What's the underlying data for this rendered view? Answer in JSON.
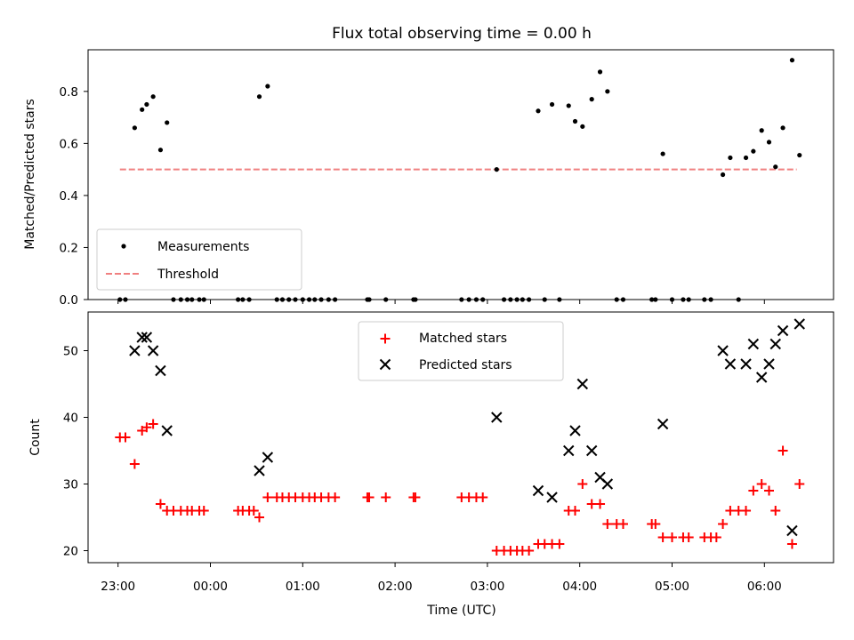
{
  "chart_data": {
    "title": "Flux total observing time = 0.00 h",
    "x_tick_labels": [
      "23:00",
      "00:00",
      "01:00",
      "02:00",
      "03:00",
      "04:00",
      "05:00",
      "06:00"
    ],
    "xlabel": "Time (UTC)",
    "top": {
      "type": "scatter",
      "ylabel": "Matched/Predicted stars",
      "ylim": [
        0,
        0.96
      ],
      "y_ticks": [
        "0.0",
        "0.2",
        "0.4",
        "0.6",
        "0.8"
      ],
      "legend": {
        "position": "lower-left",
        "entries": [
          "Measurements",
          "Threshold"
        ]
      },
      "measurements": [
        [
          -0.98,
          0
        ],
        [
          -0.92,
          0
        ],
        [
          -0.82,
          0.66
        ],
        [
          -0.74,
          0.73
        ],
        [
          -0.69,
          0.75
        ],
        [
          -0.62,
          0.78
        ],
        [
          -0.54,
          0.575
        ],
        [
          -0.47,
          0.68
        ],
        [
          -0.4,
          0
        ],
        [
          -0.32,
          0
        ],
        [
          -0.25,
          0
        ],
        [
          -0.2,
          0
        ],
        [
          -0.12,
          0
        ],
        [
          -0.07,
          0
        ],
        [
          0.3,
          0
        ],
        [
          0.35,
          0
        ],
        [
          0.42,
          0
        ],
        [
          0.53,
          0.78
        ],
        [
          0.62,
          0.82
        ],
        [
          0.72,
          0
        ],
        [
          0.78,
          0
        ],
        [
          0.85,
          0
        ],
        [
          0.92,
          0
        ],
        [
          1.0,
          0
        ],
        [
          1.07,
          0
        ],
        [
          1.13,
          0
        ],
        [
          1.2,
          0
        ],
        [
          1.28,
          0
        ],
        [
          1.35,
          0
        ],
        [
          1.7,
          0
        ],
        [
          1.72,
          0
        ],
        [
          1.9,
          0
        ],
        [
          2.2,
          0
        ],
        [
          2.22,
          0
        ],
        [
          2.72,
          0
        ],
        [
          2.8,
          0
        ],
        [
          2.88,
          0
        ],
        [
          2.95,
          0
        ],
        [
          3.1,
          0.5
        ],
        [
          3.18,
          0
        ],
        [
          3.25,
          0
        ],
        [
          3.32,
          0
        ],
        [
          3.38,
          0
        ],
        [
          3.45,
          0
        ],
        [
          3.55,
          0.725
        ],
        [
          3.62,
          0
        ],
        [
          3.7,
          0.75
        ],
        [
          3.78,
          0
        ],
        [
          3.88,
          0.745
        ],
        [
          3.95,
          0.685
        ],
        [
          4.03,
          0.665
        ],
        [
          4.13,
          0.77
        ],
        [
          4.22,
          0.875
        ],
        [
          4.3,
          0.8
        ],
        [
          4.4,
          0
        ],
        [
          4.47,
          0
        ],
        [
          4.78,
          0
        ],
        [
          4.82,
          0
        ],
        [
          4.9,
          0.56
        ],
        [
          5.0,
          0
        ],
        [
          5.12,
          0
        ],
        [
          5.18,
          0
        ],
        [
          5.35,
          0
        ],
        [
          5.42,
          0
        ],
        [
          5.55,
          0.48
        ],
        [
          5.63,
          0.545
        ],
        [
          5.72,
          0
        ],
        [
          5.8,
          0.545
        ],
        [
          5.88,
          0.57
        ],
        [
          5.97,
          0.65
        ],
        [
          6.05,
          0.605
        ],
        [
          6.12,
          0.51
        ],
        [
          6.2,
          0.66
        ],
        [
          6.3,
          0.92
        ],
        [
          6.38,
          0.555
        ]
      ],
      "threshold": {
        "value": 0.5,
        "x_range": [
          -0.98,
          6.35
        ]
      },
      "threshold_color": "#f08080"
    },
    "bottom": {
      "type": "scatter",
      "ylabel": "Count",
      "ylim": [
        18.2,
        55.8
      ],
      "y_ticks": [
        "20",
        "30",
        "40",
        "50"
      ],
      "legend": {
        "position": "top-center",
        "entries": [
          "Matched stars",
          "Predicted stars"
        ]
      },
      "matched_color": "#ff0000",
      "predicted_color": "#000000",
      "matched": [
        [
          -0.98,
          37
        ],
        [
          -0.92,
          37
        ],
        [
          -0.82,
          33
        ],
        [
          -0.74,
          38
        ],
        [
          -0.69,
          38.5
        ],
        [
          -0.62,
          39
        ],
        [
          -0.54,
          27
        ],
        [
          -0.47,
          26
        ],
        [
          -0.4,
          26
        ],
        [
          -0.32,
          26
        ],
        [
          -0.25,
          26
        ],
        [
          -0.2,
          26
        ],
        [
          -0.12,
          26
        ],
        [
          -0.07,
          26
        ],
        [
          0.3,
          26
        ],
        [
          0.35,
          26
        ],
        [
          0.42,
          26
        ],
        [
          0.47,
          26
        ],
        [
          0.53,
          25
        ],
        [
          0.62,
          28
        ],
        [
          0.72,
          28
        ],
        [
          0.78,
          28
        ],
        [
          0.85,
          28
        ],
        [
          0.92,
          28
        ],
        [
          1.0,
          28
        ],
        [
          1.07,
          28
        ],
        [
          1.13,
          28
        ],
        [
          1.2,
          28
        ],
        [
          1.28,
          28
        ],
        [
          1.35,
          28
        ],
        [
          1.7,
          28
        ],
        [
          1.72,
          28
        ],
        [
          1.9,
          28
        ],
        [
          2.2,
          28
        ],
        [
          2.22,
          28
        ],
        [
          2.72,
          28
        ],
        [
          2.8,
          28
        ],
        [
          2.88,
          28
        ],
        [
          2.95,
          28
        ],
        [
          3.1,
          20
        ],
        [
          3.18,
          20
        ],
        [
          3.25,
          20
        ],
        [
          3.32,
          20
        ],
        [
          3.38,
          20
        ],
        [
          3.45,
          20
        ],
        [
          3.55,
          21
        ],
        [
          3.62,
          21
        ],
        [
          3.7,
          21
        ],
        [
          3.78,
          21
        ],
        [
          3.88,
          26
        ],
        [
          3.95,
          26
        ],
        [
          4.03,
          30
        ],
        [
          4.13,
          27
        ],
        [
          4.22,
          27
        ],
        [
          4.3,
          24
        ],
        [
          4.4,
          24
        ],
        [
          4.47,
          24
        ],
        [
          4.78,
          24
        ],
        [
          4.82,
          24
        ],
        [
          4.9,
          22
        ],
        [
          5.0,
          22
        ],
        [
          5.12,
          22
        ],
        [
          5.18,
          22
        ],
        [
          5.35,
          22
        ],
        [
          5.42,
          22
        ],
        [
          5.48,
          22
        ],
        [
          5.55,
          24
        ],
        [
          5.63,
          26
        ],
        [
          5.72,
          26
        ],
        [
          5.8,
          26
        ],
        [
          5.88,
          29
        ],
        [
          5.97,
          30
        ],
        [
          6.05,
          29
        ],
        [
          6.12,
          26
        ],
        [
          6.2,
          35
        ],
        [
          6.3,
          21
        ],
        [
          6.38,
          30
        ]
      ],
      "predicted": [
        [
          -0.82,
          50
        ],
        [
          -0.74,
          52
        ],
        [
          -0.69,
          52
        ],
        [
          -0.62,
          50
        ],
        [
          -0.54,
          47
        ],
        [
          -0.47,
          38
        ],
        [
          0.53,
          32
        ],
        [
          0.62,
          34
        ],
        [
          3.1,
          40
        ],
        [
          3.55,
          29
        ],
        [
          3.7,
          28
        ],
        [
          3.88,
          35
        ],
        [
          3.95,
          38
        ],
        [
          4.03,
          45
        ],
        [
          4.13,
          35
        ],
        [
          4.22,
          31
        ],
        [
          4.3,
          30
        ],
        [
          4.9,
          39
        ],
        [
          5.55,
          50
        ],
        [
          5.63,
          48
        ],
        [
          5.8,
          48
        ],
        [
          5.88,
          51
        ],
        [
          5.97,
          46
        ],
        [
          6.05,
          48
        ],
        [
          6.12,
          51
        ],
        [
          6.2,
          53
        ],
        [
          6.3,
          23
        ],
        [
          6.38,
          54
        ]
      ]
    }
  }
}
